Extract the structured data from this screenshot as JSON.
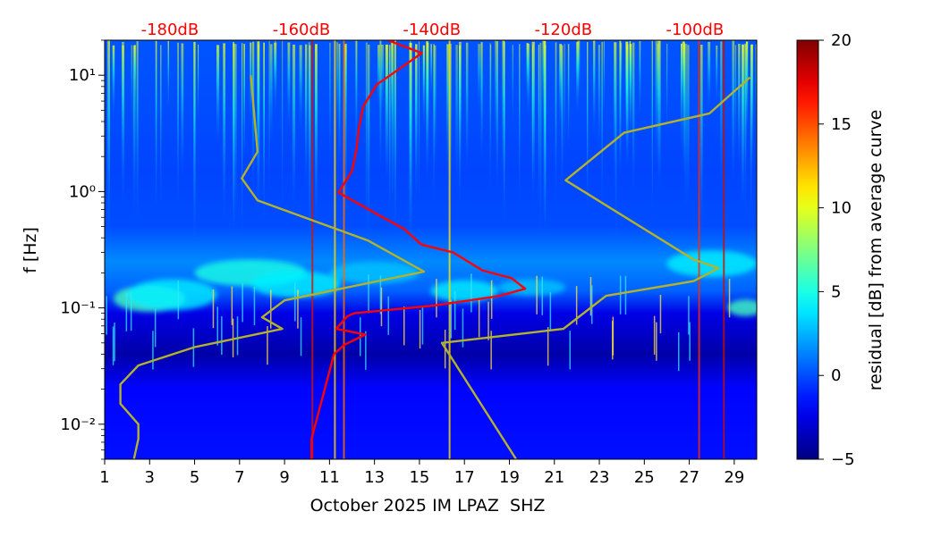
{
  "chart_data": {
    "type": "heatmap",
    "title": "",
    "xlabel": "October 2025 IM LPAZ  SHZ",
    "ylabel": "f [Hz]",
    "x_ticks": [
      1,
      3,
      5,
      7,
      9,
      11,
      13,
      15,
      17,
      19,
      21,
      23,
      25,
      27,
      29
    ],
    "xlim": [
      1,
      30
    ],
    "y_scale": "log",
    "ylim": [
      0.005,
      20
    ],
    "y_ticks": [
      {
        "value": 0.01,
        "label": "10⁻²"
      },
      {
        "value": 0.1,
        "label": "10⁻¹"
      },
      {
        "value": 1,
        "label": "10⁰"
      },
      {
        "value": 10,
        "label": "10¹"
      }
    ],
    "top_axis": {
      "labels": [
        "-180dB",
        "-160dB",
        "-140dB",
        "-120dB",
        "-100dB"
      ],
      "positions_day": [
        3.9,
        9.75,
        15.55,
        21.4,
        27.25
      ],
      "color": "#ff0000"
    },
    "colorbar": {
      "label": "residual [dB] from average curve",
      "range": [
        -5,
        20
      ],
      "ticks": [
        -5,
        0,
        5,
        10,
        15,
        20
      ],
      "colormap": "jet"
    },
    "series": [
      {
        "color": "#ff0000",
        "points": [
          [
            10.2,
            0.005
          ],
          [
            10.2,
            0.0075
          ],
          [
            11.2,
            0.04
          ],
          [
            11.65,
            0.048
          ],
          [
            12.6,
            0.059
          ],
          [
            11.3,
            0.066
          ],
          [
            11.8,
            0.085
          ],
          [
            12.1,
            0.09
          ],
          [
            15.7,
            0.105
          ],
          [
            18.5,
            0.126
          ],
          [
            19.7,
            0.146
          ],
          [
            19.1,
            0.18
          ],
          [
            17.8,
            0.21
          ],
          [
            16.5,
            0.3
          ],
          [
            15.1,
            0.35
          ],
          [
            14.3,
            0.48
          ],
          [
            13.1,
            0.64
          ],
          [
            11.4,
            0.98
          ],
          [
            12.0,
            1.5
          ],
          [
            12.2,
            2.3
          ],
          [
            12.3,
            3.5
          ],
          [
            12.5,
            5.4
          ],
          [
            13.1,
            8.3
          ],
          [
            14.5,
            12.8
          ],
          [
            15.1,
            15.5
          ],
          [
            13.6,
            20
          ]
        ]
      },
      {
        "color": "#b2b22c",
        "points": [
          [
            2.3,
            0.005
          ],
          [
            2.5,
            0.0075
          ],
          [
            2.5,
            0.01
          ],
          [
            1.7,
            0.015
          ],
          [
            1.7,
            0.022
          ],
          [
            2.5,
            0.032
          ],
          [
            5.0,
            0.046
          ],
          [
            8.9,
            0.066
          ],
          [
            8.0,
            0.083
          ],
          [
            9.0,
            0.116
          ],
          [
            15.2,
            0.205
          ],
          [
            12.7,
            0.38
          ],
          [
            7.8,
            0.84
          ],
          [
            7.1,
            1.3
          ],
          [
            7.8,
            2.2
          ],
          [
            7.5,
            10
          ]
        ]
      },
      {
        "color": "#b2b22c",
        "points": [
          [
            19.3,
            0.005
          ],
          [
            16.0,
            0.05
          ],
          [
            21.4,
            0.066
          ],
          [
            23.3,
            0.127
          ],
          [
            27.2,
            0.17
          ],
          [
            28.3,
            0.22
          ],
          [
            27.2,
            0.26
          ],
          [
            21.5,
            1.25
          ],
          [
            24.1,
            3.2
          ],
          [
            27.9,
            4.7
          ],
          [
            29.7,
            9.6
          ]
        ]
      }
    ],
    "features": {
      "background_residual_db": -1,
      "microseism_band_hz": [
        0.09,
        0.25
      ],
      "quiet_band_hz": [
        0.04,
        0.09
      ]
    }
  }
}
